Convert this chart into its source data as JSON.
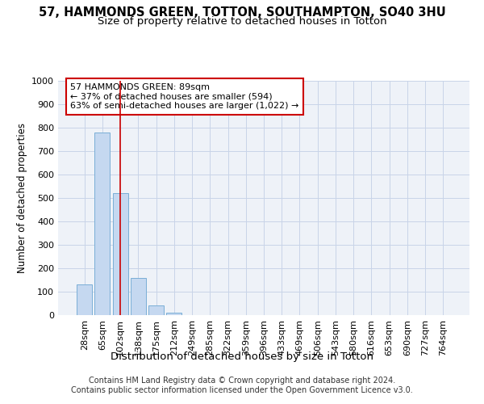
{
  "title": "57, HAMMONDS GREEN, TOTTON, SOUTHAMPTON, SO40 3HU",
  "subtitle": "Size of property relative to detached houses in Totton",
  "xlabel": "Distribution of detached houses by size in Totton",
  "ylabel": "Number of detached properties",
  "categories": [
    "28sqm",
    "65sqm",
    "102sqm",
    "138sqm",
    "175sqm",
    "212sqm",
    "249sqm",
    "285sqm",
    "322sqm",
    "359sqm",
    "396sqm",
    "433sqm",
    "469sqm",
    "506sqm",
    "543sqm",
    "580sqm",
    "616sqm",
    "653sqm",
    "690sqm",
    "727sqm",
    "764sqm"
  ],
  "values": [
    130,
    778,
    522,
    157,
    40,
    12,
    0,
    0,
    0,
    0,
    0,
    0,
    0,
    0,
    0,
    0,
    0,
    0,
    0,
    0,
    0
  ],
  "bar_color": "#c5d8f0",
  "bar_edge_color": "#7aaed6",
  "vline_x": 2.0,
  "vline_color": "#cc0000",
  "annotation_text": "57 HAMMONDS GREEN: 89sqm\n← 37% of detached houses are smaller (594)\n63% of semi-detached houses are larger (1,022) →",
  "annotation_box_color": "#ffffff",
  "annotation_box_edge": "#cc0000",
  "ylim": [
    0,
    1000
  ],
  "yticks": [
    0,
    100,
    200,
    300,
    400,
    500,
    600,
    700,
    800,
    900,
    1000
  ],
  "grid_color": "#c8d4e8",
  "background_color": "#eef2f8",
  "footer": "Contains HM Land Registry data © Crown copyright and database right 2024.\nContains public sector information licensed under the Open Government Licence v3.0.",
  "title_fontsize": 10.5,
  "subtitle_fontsize": 9.5,
  "xlabel_fontsize": 9.5,
  "ylabel_fontsize": 8.5,
  "tick_fontsize": 8,
  "annotation_fontsize": 8,
  "footer_fontsize": 7
}
